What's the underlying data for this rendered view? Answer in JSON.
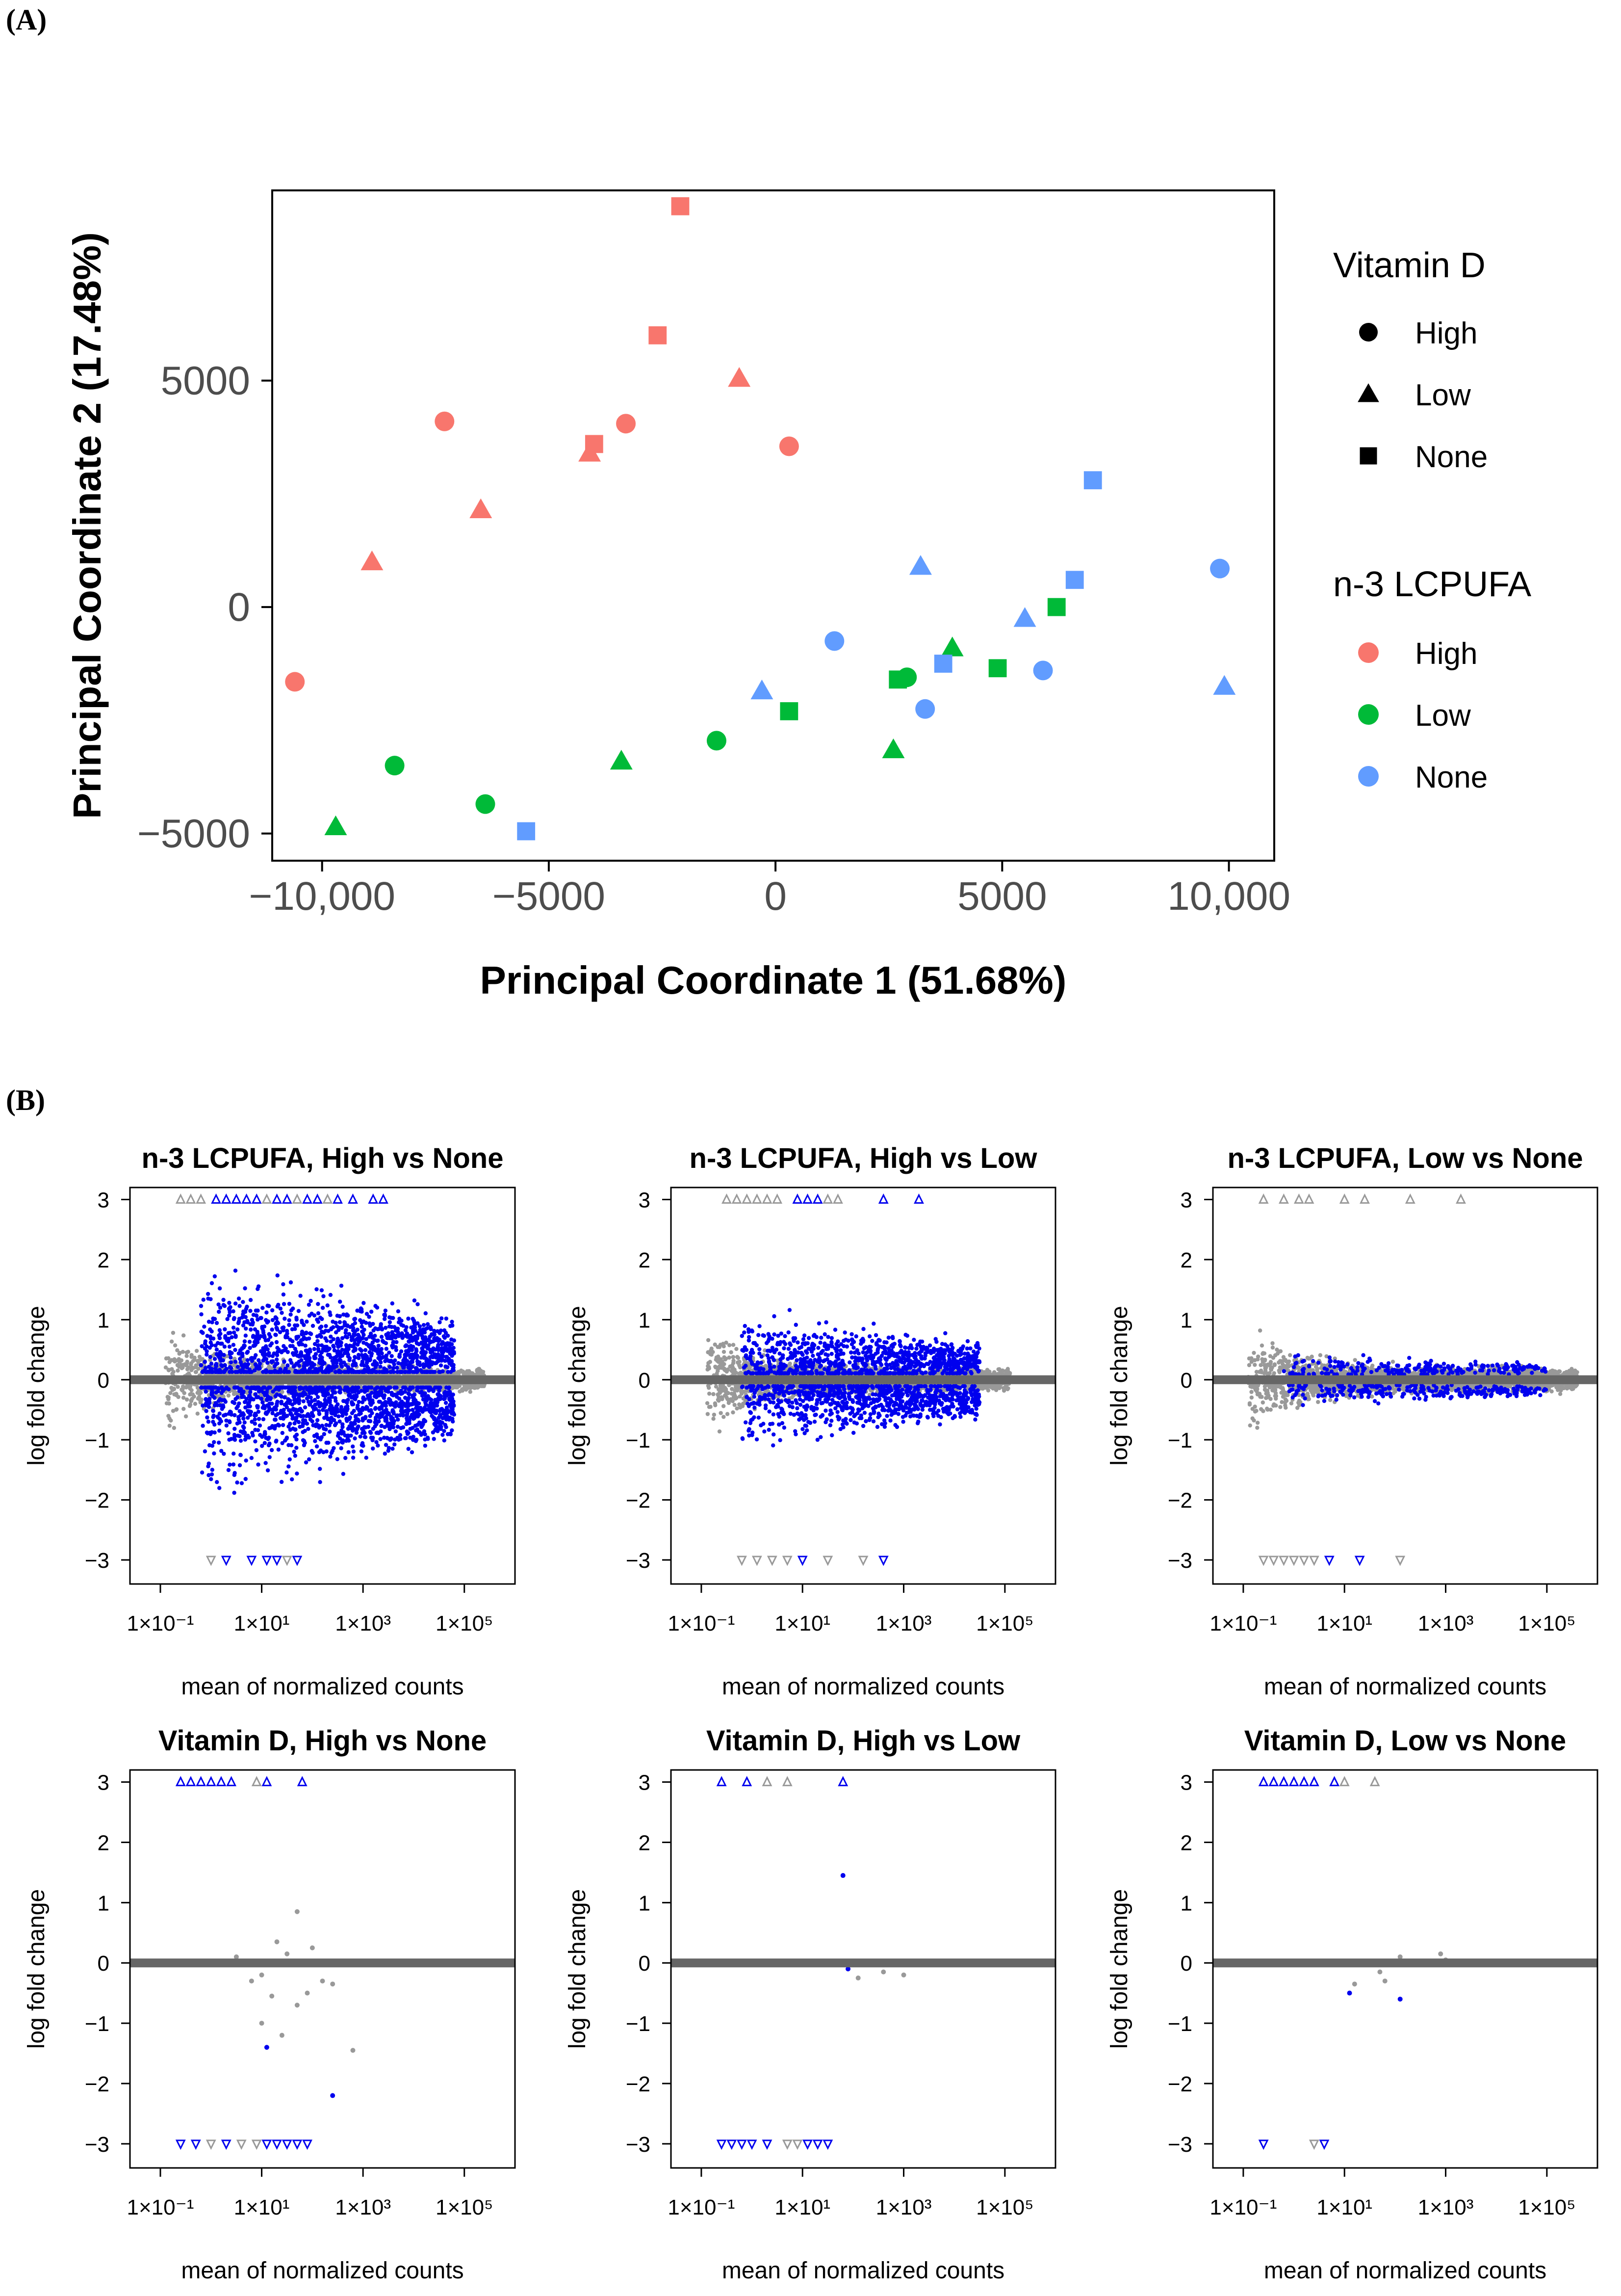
{
  "panel_labels": {
    "a": "(A)",
    "b": "(B)"
  },
  "colors": {
    "n3_high": "#F8766D",
    "n3_low": "#00BA38",
    "n3_none": "#619CFF",
    "sig": "#0000EE",
    "nonsig": "#999999",
    "zero_line": "#666666"
  },
  "chart_data": [
    {
      "type": "scatter",
      "id": "pcoa",
      "title": "",
      "xlabel": "Principal Coordinate 1 (51.68%)",
      "ylabel": "Principal Coordinate 2 (17.48%)",
      "xlim": [
        -11100,
        11000
      ],
      "ylim": [
        -5600,
        9200
      ],
      "xticks": [
        -10000,
        -5000,
        0,
        5000,
        10000
      ],
      "xtick_labels": [
        "−10,000",
        "−5000",
        "0",
        "5000",
        "10,000"
      ],
      "yticks": [
        -5000,
        0,
        5000
      ],
      "ytick_labels": [
        "−5000",
        "0",
        "5000"
      ],
      "legend_shape": {
        "title": "Vitamin D",
        "entries": [
          "High",
          "Low",
          "None"
        ]
      },
      "legend_color": {
        "title": "n-3 LCPUFA",
        "entries": [
          "High",
          "Low",
          "None"
        ]
      },
      "points": [
        {
          "x": -2100,
          "y": 8850,
          "vitd": "None",
          "n3": "High"
        },
        {
          "x": -2600,
          "y": 6000,
          "vitd": "None",
          "n3": "High"
        },
        {
          "x": -800,
          "y": 5050,
          "vitd": "Low",
          "n3": "High"
        },
        {
          "x": -7300,
          "y": 4100,
          "vitd": "High",
          "n3": "High"
        },
        {
          "x": -3300,
          "y": 4050,
          "vitd": "High",
          "n3": "High"
        },
        {
          "x": -4000,
          "y": 3600,
          "vitd": "None",
          "n3": "High"
        },
        {
          "x": -4100,
          "y": 3400,
          "vitd": "Low",
          "n3": "High"
        },
        {
          "x": 300,
          "y": 3550,
          "vitd": "High",
          "n3": "High"
        },
        {
          "x": -6500,
          "y": 2150,
          "vitd": "Low",
          "n3": "High"
        },
        {
          "x": -8900,
          "y": 1000,
          "vitd": "Low",
          "n3": "High"
        },
        {
          "x": -10600,
          "y": -1650,
          "vitd": "High",
          "n3": "High"
        },
        {
          "x": 6200,
          "y": 0,
          "vitd": "None",
          "n3": "Low"
        },
        {
          "x": 3900,
          "y": -900,
          "vitd": "Low",
          "n3": "Low"
        },
        {
          "x": 2700,
          "y": -1600,
          "vitd": "None",
          "n3": "Low"
        },
        {
          "x": 2900,
          "y": -1550,
          "vitd": "High",
          "n3": "Low"
        },
        {
          "x": 4900,
          "y": -1350,
          "vitd": "None",
          "n3": "Low"
        },
        {
          "x": 300,
          "y": -2300,
          "vitd": "None",
          "n3": "Low"
        },
        {
          "x": -1300,
          "y": -2950,
          "vitd": "High",
          "n3": "Low"
        },
        {
          "x": 2600,
          "y": -3150,
          "vitd": "Low",
          "n3": "Low"
        },
        {
          "x": -3400,
          "y": -3400,
          "vitd": "Low",
          "n3": "Low"
        },
        {
          "x": -8400,
          "y": -3500,
          "vitd": "High",
          "n3": "Low"
        },
        {
          "x": -6400,
          "y": -4350,
          "vitd": "High",
          "n3": "Low"
        },
        {
          "x": -9700,
          "y": -4850,
          "vitd": "Low",
          "n3": "Low"
        },
        {
          "x": 7000,
          "y": 2800,
          "vitd": "None",
          "n3": "None"
        },
        {
          "x": 9800,
          "y": 850,
          "vitd": "High",
          "n3": "None"
        },
        {
          "x": 3200,
          "y": 900,
          "vitd": "Low",
          "n3": "None"
        },
        {
          "x": 6600,
          "y": 600,
          "vitd": "None",
          "n3": "None"
        },
        {
          "x": 5500,
          "y": -250,
          "vitd": "Low",
          "n3": "None"
        },
        {
          "x": 1300,
          "y": -750,
          "vitd": "High",
          "n3": "None"
        },
        {
          "x": 3700,
          "y": -1250,
          "vitd": "None",
          "n3": "None"
        },
        {
          "x": 5900,
          "y": -1400,
          "vitd": "High",
          "n3": "None"
        },
        {
          "x": 9900,
          "y": -1750,
          "vitd": "Low",
          "n3": "None"
        },
        {
          "x": -300,
          "y": -1850,
          "vitd": "Low",
          "n3": "None"
        },
        {
          "x": 3300,
          "y": -2250,
          "vitd": "High",
          "n3": "None"
        },
        {
          "x": -5500,
          "y": -4950,
          "vitd": "None",
          "n3": "None"
        }
      ]
    },
    {
      "type": "scatter",
      "id": "ma1",
      "title": "n-3 LCPUFA, High vs None",
      "xlabel": "mean of normalized counts",
      "ylabel": "log fold change",
      "xscale": "log10",
      "xlim_log10": [
        -1.6,
        6.0
      ],
      "ylim": [
        -3.4,
        3.2
      ],
      "xtick_labels": [
        "1×10⁻¹",
        "1×10¹",
        "1×10³",
        "1×10⁵"
      ],
      "ytick_labels": [
        "−3",
        "−2",
        "−1",
        "0",
        "1",
        "2",
        "3"
      ],
      "spread": 1.0,
      "nsig": 2600,
      "nnonsig": 2400,
      "xmax_log10": 5.3,
      "outliers_top": [
        [
          -0.6,
          "n"
        ],
        [
          -0.4,
          "n"
        ],
        [
          -0.2,
          "n"
        ],
        [
          0.1,
          "s"
        ],
        [
          0.3,
          "s"
        ],
        [
          0.5,
          "s"
        ],
        [
          0.7,
          "s"
        ],
        [
          0.9,
          "s"
        ],
        [
          1.1,
          "n"
        ],
        [
          1.3,
          "s"
        ],
        [
          1.5,
          "s"
        ],
        [
          1.7,
          "n"
        ],
        [
          1.9,
          "s"
        ],
        [
          2.1,
          "s"
        ],
        [
          2.3,
          "n"
        ],
        [
          2.5,
          "s"
        ],
        [
          2.8,
          "s"
        ],
        [
          3.2,
          "s"
        ],
        [
          3.4,
          "s"
        ]
      ],
      "outliers_bottom": [
        [
          0,
          "n"
        ],
        [
          0.3,
          "s"
        ],
        [
          0.8,
          "s"
        ],
        [
          1.1,
          "s"
        ],
        [
          1.3,
          "s"
        ],
        [
          1.5,
          "n"
        ],
        [
          1.7,
          "s"
        ]
      ]
    },
    {
      "type": "scatter",
      "id": "ma2",
      "title": "n-3 LCPUFA, High vs Low",
      "xlabel": "mean of normalized counts",
      "ylabel": "log fold change",
      "xscale": "log10",
      "xlim_log10": [
        -1.6,
        6.0
      ],
      "ylim": [
        -3.4,
        3.2
      ],
      "xtick_labels": [
        "1×10⁻¹",
        "1×10¹",
        "1×10³",
        "1×10⁵"
      ],
      "ytick_labels": [
        "−3",
        "−2",
        "−1",
        "0",
        "1",
        "2",
        "3"
      ],
      "spread": 0.55,
      "nsig": 1800,
      "nnonsig": 2600,
      "xmax_log10": 5.0,
      "outliers_top": [
        [
          -0.5,
          "n"
        ],
        [
          -0.3,
          "n"
        ],
        [
          -0.1,
          "n"
        ],
        [
          0.1,
          "n"
        ],
        [
          0.3,
          "n"
        ],
        [
          0.5,
          "n"
        ],
        [
          0.9,
          "s"
        ],
        [
          1.1,
          "s"
        ],
        [
          1.3,
          "s"
        ],
        [
          1.5,
          "n"
        ],
        [
          1.7,
          "n"
        ],
        [
          2.6,
          "s"
        ],
        [
          3.3,
          "s"
        ]
      ],
      "outliers_bottom": [
        [
          -0.2,
          "n"
        ],
        [
          0.1,
          "n"
        ],
        [
          0.4,
          "n"
        ],
        [
          0.7,
          "n"
        ],
        [
          1.0,
          "s"
        ],
        [
          1.5,
          "n"
        ],
        [
          2.2,
          "n"
        ],
        [
          2.6,
          "s"
        ]
      ]
    },
    {
      "type": "scatter",
      "id": "ma3",
      "title": "n-3 LCPUFA, Low vs None",
      "xlabel": "mean of normalized counts",
      "ylabel": "log fold change",
      "xscale": "log10",
      "xlim_log10": [
        -1.6,
        6.0
      ],
      "ylim": [
        -3.4,
        3.2
      ],
      "xtick_labels": [
        "1×10⁻¹",
        "1×10¹",
        "1×10³",
        "1×10⁵"
      ],
      "ytick_labels": [
        "−3",
        "−2",
        "−1",
        "0",
        "1",
        "2",
        "3"
      ],
      "spread": 0.18,
      "nsig": 500,
      "nnonsig": 3000,
      "xmax_log10": 5.5,
      "outliers_top": [
        [
          -0.6,
          "n"
        ],
        [
          -0.2,
          "n"
        ],
        [
          0.1,
          "n"
        ],
        [
          0.3,
          "n"
        ],
        [
          1.0,
          "n"
        ],
        [
          1.4,
          "n"
        ],
        [
          2.3,
          "n"
        ],
        [
          3.3,
          "n"
        ]
      ],
      "outliers_bottom": [
        [
          -0.6,
          "n"
        ],
        [
          -0.4,
          "n"
        ],
        [
          -0.2,
          "n"
        ],
        [
          0,
          "n"
        ],
        [
          0.2,
          "n"
        ],
        [
          0.4,
          "n"
        ],
        [
          0.7,
          "s"
        ],
        [
          1.3,
          "s"
        ],
        [
          2.1,
          "n"
        ]
      ]
    },
    {
      "type": "scatter",
      "id": "ma4",
      "title": "Vitamin D, High vs None",
      "xlabel": "mean of normalized counts",
      "ylabel": "log fold change",
      "xscale": "log10",
      "xlim_log10": [
        -1.6,
        6.0
      ],
      "ylim": [
        -3.4,
        3.2
      ],
      "xtick_labels": [
        "1×10⁻¹",
        "1×10¹",
        "1×10³",
        "1×10⁵"
      ],
      "ytick_labels": [
        "−3",
        "−2",
        "−1",
        "0",
        "1",
        "2",
        "3"
      ],
      "spread": 0,
      "nsig": 0,
      "nnonsig": 0,
      "xmax_log10": 5.5,
      "extra": [
        [
          1.7,
          0.85,
          "n"
        ],
        [
          1.3,
          0.35,
          "n"
        ],
        [
          2.0,
          0.25,
          "n"
        ],
        [
          1.5,
          0.15,
          "n"
        ],
        [
          0.5,
          0.1,
          "n"
        ],
        [
          1.0,
          -0.2,
          "n"
        ],
        [
          0.8,
          -0.3,
          "n"
        ],
        [
          2.2,
          -0.3,
          "n"
        ],
        [
          2.4,
          -0.35,
          "n"
        ],
        [
          1.2,
          -0.55,
          "n"
        ],
        [
          1.9,
          -0.5,
          "n"
        ],
        [
          1.7,
          -0.7,
          "n"
        ],
        [
          1.0,
          -1.0,
          "n"
        ],
        [
          1.4,
          -1.2,
          "n"
        ],
        [
          1.1,
          -1.4,
          "s"
        ],
        [
          2.4,
          -2.2,
          "s"
        ],
        [
          2.8,
          -1.45,
          "n"
        ]
      ],
      "outliers_top": [
        [
          -0.6,
          "s"
        ],
        [
          -0.4,
          "s"
        ],
        [
          -0.2,
          "s"
        ],
        [
          0.0,
          "s"
        ],
        [
          0.2,
          "s"
        ],
        [
          0.4,
          "s"
        ],
        [
          0.9,
          "n"
        ],
        [
          1.1,
          "s"
        ],
        [
          1.8,
          "s"
        ]
      ],
      "outliers_bottom": [
        [
          -0.6,
          "s"
        ],
        [
          -0.3,
          "s"
        ],
        [
          0.0,
          "n"
        ],
        [
          0.3,
          "s"
        ],
        [
          0.6,
          "n"
        ],
        [
          0.9,
          "n"
        ],
        [
          1.1,
          "s"
        ],
        [
          1.3,
          "s"
        ],
        [
          1.5,
          "s"
        ],
        [
          1.7,
          "s"
        ],
        [
          1.9,
          "s"
        ]
      ]
    },
    {
      "type": "scatter",
      "id": "ma5",
      "title": "Vitamin D, High vs Low",
      "xlabel": "mean of normalized counts",
      "ylabel": "log fold change",
      "xscale": "log10",
      "xlim_log10": [
        -1.6,
        6.0
      ],
      "ylim": [
        -3.4,
        3.2
      ],
      "xtick_labels": [
        "1×10⁻¹",
        "1×10¹",
        "1×10³",
        "1×10⁵"
      ],
      "ytick_labels": [
        "−3",
        "−2",
        "−1",
        "0",
        "1",
        "2",
        "3"
      ],
      "spread": 0,
      "nsig": 0,
      "nnonsig": 0,
      "xmax_log10": 5.5,
      "extra": [
        [
          1.8,
          1.45,
          "s"
        ],
        [
          1.9,
          -0.1,
          "s"
        ],
        [
          2.1,
          -0.25,
          "n"
        ],
        [
          2.6,
          -0.15,
          "n"
        ],
        [
          3.0,
          -0.2,
          "n"
        ]
      ],
      "outliers_top": [
        [
          -0.6,
          "s"
        ],
        [
          -0.1,
          "s"
        ],
        [
          0.3,
          "n"
        ],
        [
          0.7,
          "n"
        ],
        [
          1.8,
          "s"
        ]
      ],
      "outliers_bottom": [
        [
          -0.6,
          "s"
        ],
        [
          -0.4,
          "s"
        ],
        [
          -0.2,
          "s"
        ],
        [
          0.0,
          "s"
        ],
        [
          0.3,
          "s"
        ],
        [
          0.7,
          "n"
        ],
        [
          0.9,
          "n"
        ],
        [
          1.1,
          "s"
        ],
        [
          1.3,
          "s"
        ],
        [
          1.5,
          "s"
        ]
      ]
    },
    {
      "type": "scatter",
      "id": "ma6",
      "title": "Vitamin D, Low vs None",
      "xlabel": "mean of normalized counts",
      "ylabel": "log fold change",
      "xscale": "log10",
      "xlim_log10": [
        -1.6,
        6.0
      ],
      "ylim": [
        -3.4,
        3.2
      ],
      "xtick_labels": [
        "1×10⁻¹",
        "1×10¹",
        "1×10³",
        "1×10⁵"
      ],
      "ytick_labels": [
        "−3",
        "−2",
        "−1",
        "0",
        "1",
        "2",
        "3"
      ],
      "spread": 0,
      "nsig": 0,
      "nnonsig": 0,
      "xmax_log10": 5.5,
      "extra": [
        [
          1.2,
          -0.35,
          "n"
        ],
        [
          1.1,
          -0.5,
          "s"
        ],
        [
          1.7,
          -0.15,
          "n"
        ],
        [
          1.8,
          -0.3,
          "n"
        ],
        [
          2.1,
          -0.6,
          "s"
        ],
        [
          2.1,
          0.1,
          "n"
        ],
        [
          2.9,
          0.15,
          "n"
        ],
        [
          3.0,
          0.05,
          "n"
        ]
      ],
      "outliers_top": [
        [
          -0.6,
          "s"
        ],
        [
          -0.4,
          "s"
        ],
        [
          -0.2,
          "s"
        ],
        [
          0.0,
          "s"
        ],
        [
          0.2,
          "s"
        ],
        [
          0.4,
          "s"
        ],
        [
          0.8,
          "s"
        ],
        [
          1.0,
          "n"
        ],
        [
          1.6,
          "n"
        ]
      ],
      "outliers_bottom": [
        [
          -0.6,
          "s"
        ],
        [
          0.4,
          "n"
        ],
        [
          0.6,
          "s"
        ]
      ]
    }
  ]
}
